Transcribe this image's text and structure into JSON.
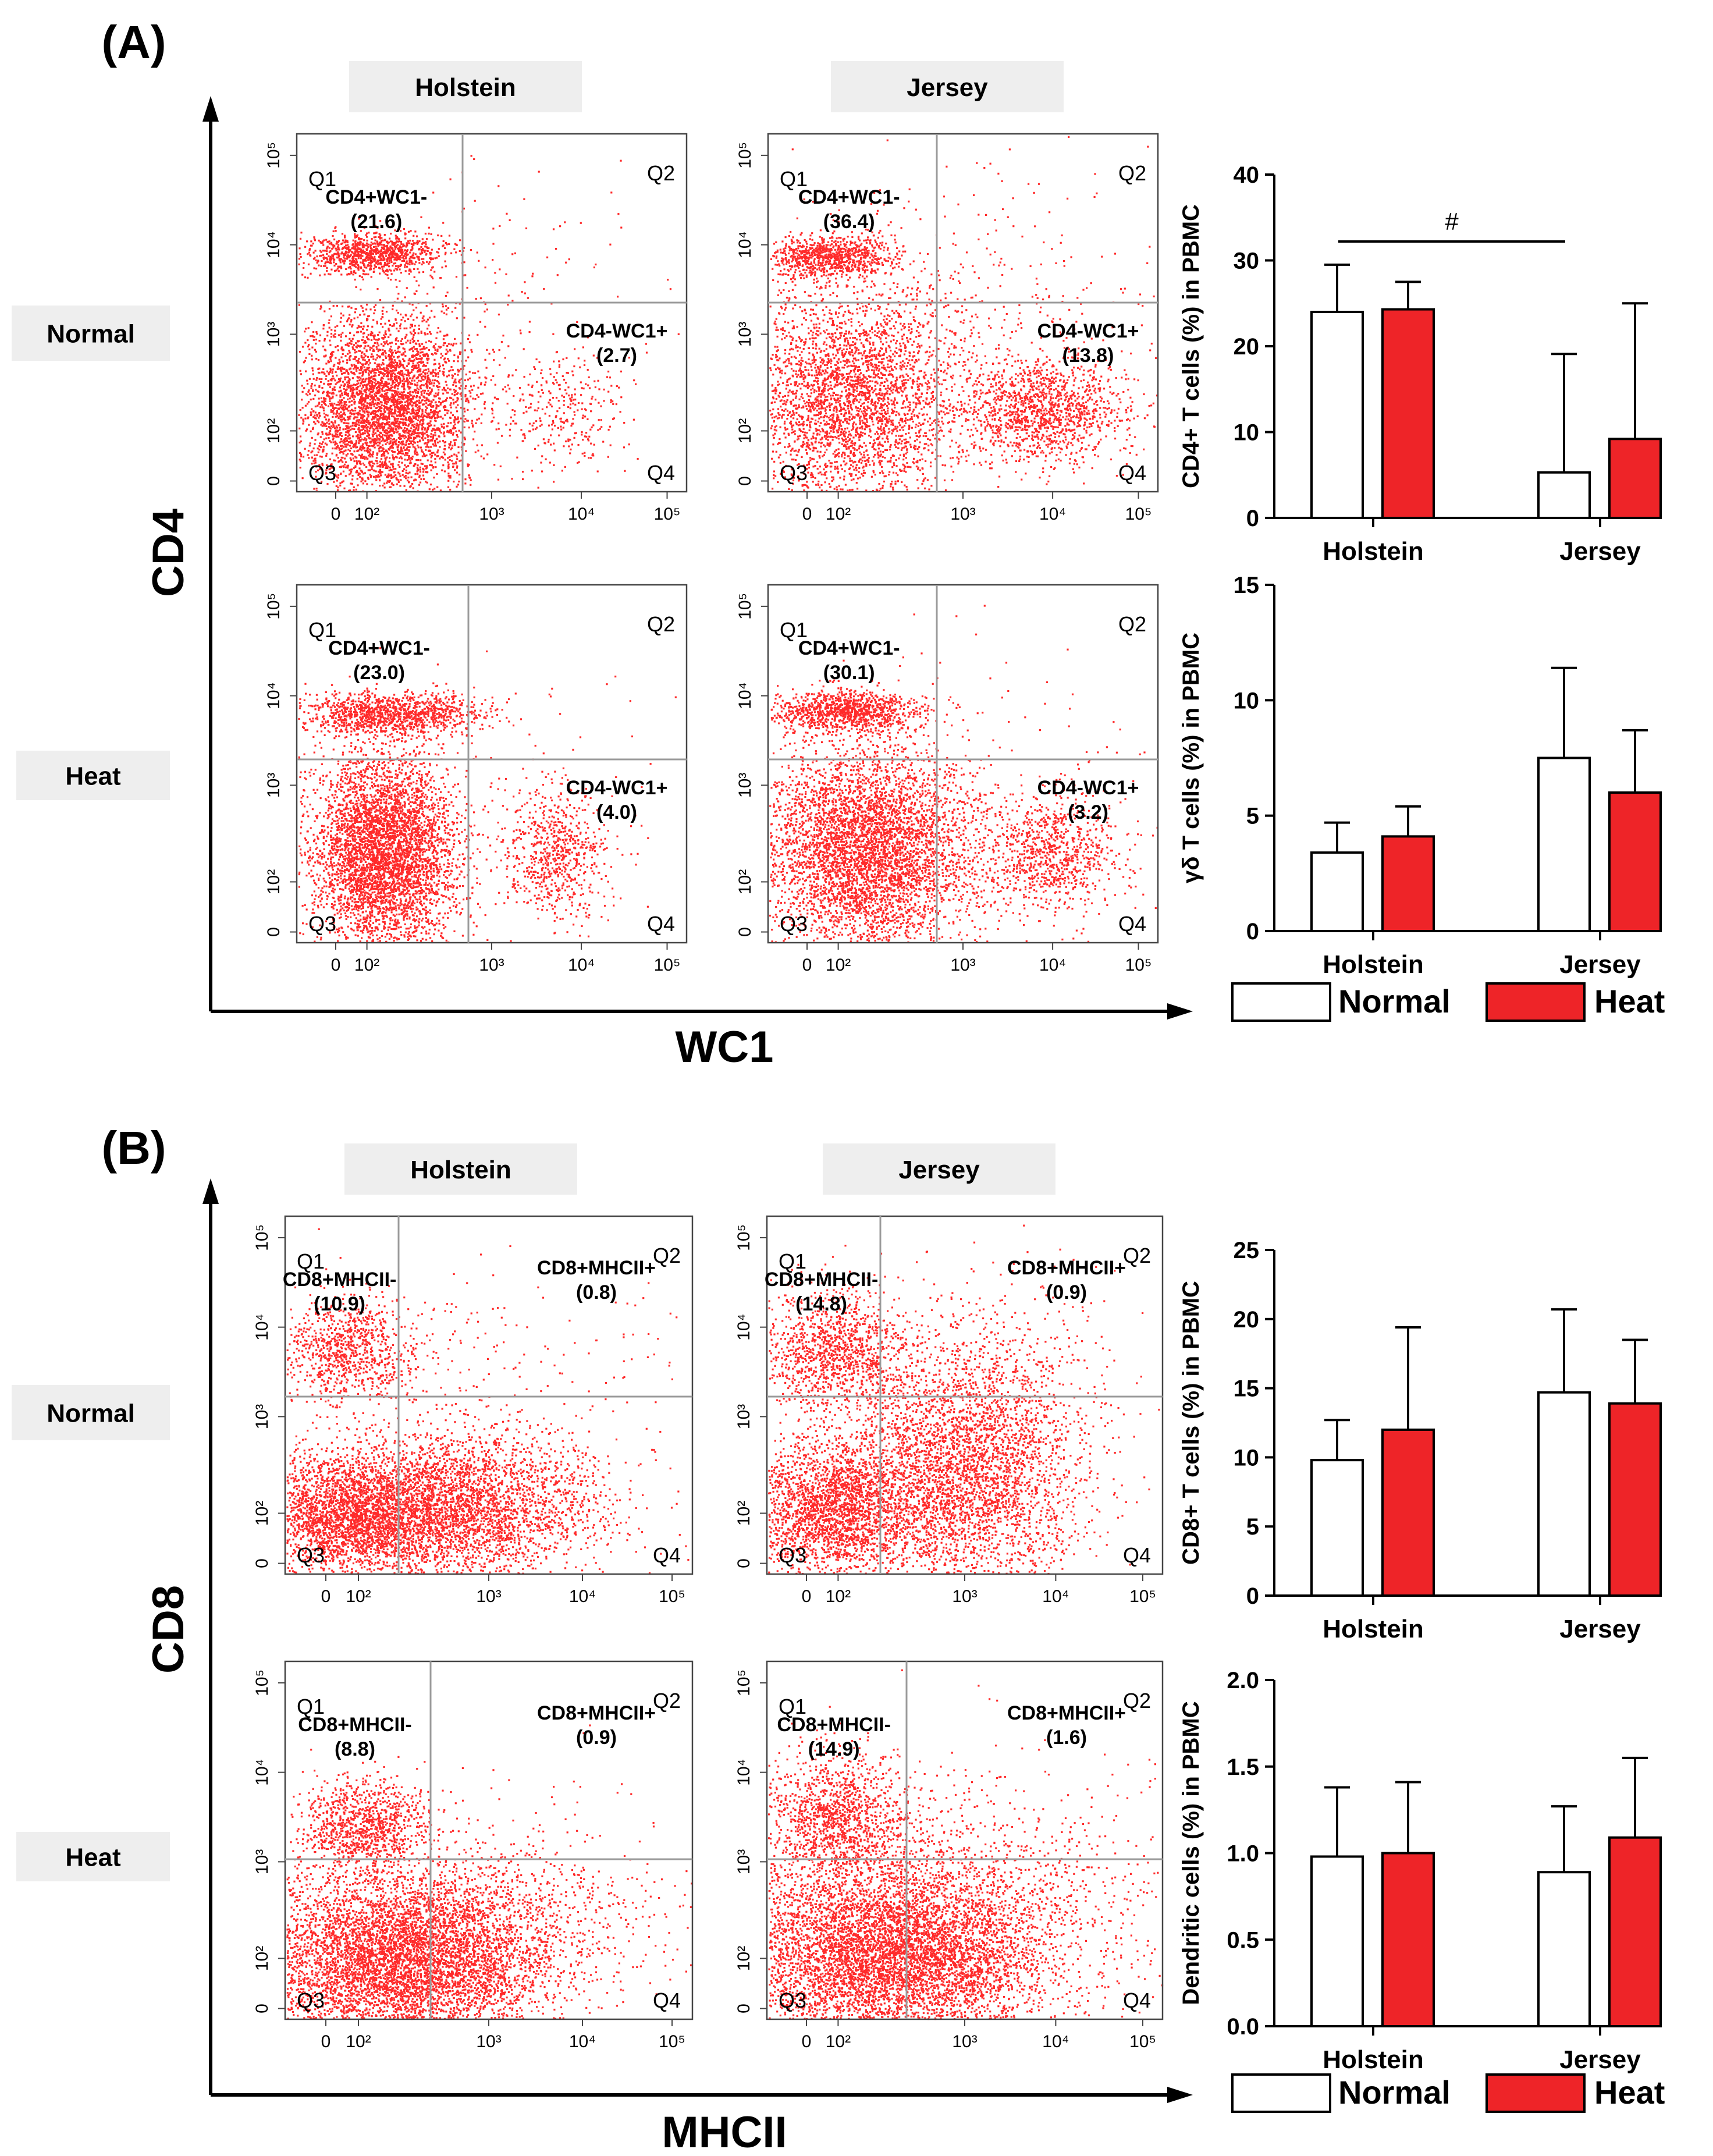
{
  "colors": {
    "red": "#ff2a2a",
    "normal_fill": "#ffffff",
    "heat_fill": "#ee2428",
    "axis": "#000000",
    "label_bg": "#eeeeee",
    "gate_line": "#9a9a9a"
  },
  "panels": [
    {
      "label": "(A)",
      "column_labels": [
        "Holstein",
        "Jersey"
      ],
      "row_labels": [
        "Normal",
        "Heat"
      ],
      "y_axis_label": "CD4",
      "x_axis_label": "WC1",
      "plots": [
        {
          "row": 0,
          "col": 0,
          "q1_name": "CD4+WC1-",
          "q1_value": "(21.6)",
          "q4_name": "CD4-WC1+",
          "q4_value": "(2.7)"
        },
        {
          "row": 0,
          "col": 1,
          "q1_name": "CD4+WC1-",
          "q1_value": "(36.4)",
          "q4_name": "CD4-WC1+",
          "q4_value": "(13.8)"
        },
        {
          "row": 1,
          "col": 0,
          "q1_name": "CD4+WC1-",
          "q1_value": "(23.0)",
          "q4_name": "CD4-WC1+",
          "q4_value": "(4.0)"
        },
        {
          "row": 1,
          "col": 1,
          "q1_name": "CD4+WC1-",
          "q1_value": "(30.1)",
          "q4_name": "CD4-WC1+",
          "q4_value": "(3.2)"
        }
      ]
    },
    {
      "label": "(B)",
      "column_labels": [
        "Holstein",
        "Jersey"
      ],
      "row_labels": [
        "Normal",
        "Heat"
      ],
      "y_axis_label": "CD8",
      "x_axis_label": "MHCII",
      "plots": [
        {
          "row": 0,
          "col": 0,
          "q1_name": "CD8+MHCII-",
          "q1_value": "(10.9)",
          "q2_name": "CD8+MHCII+",
          "q2_value": "(0.8)"
        },
        {
          "row": 0,
          "col": 1,
          "q1_name": "CD8+MHCII-",
          "q1_value": "(14.8)",
          "q2_name": "CD8+MHCII+",
          "q2_value": "(0.9)"
        },
        {
          "row": 1,
          "col": 0,
          "q1_name": "CD8+MHCII-",
          "q1_value": "(8.8)",
          "q2_name": "CD8+MHCII+",
          "q2_value": "(0.9)"
        },
        {
          "row": 1,
          "col": 1,
          "q1_name": "CD8+MHCII-",
          "q1_value": "(14.9)",
          "q2_name": "CD8+MHCII+",
          "q2_value": "(1.6)"
        }
      ]
    }
  ],
  "quadrant_labels": [
    "Q1",
    "Q2",
    "Q3",
    "Q4"
  ],
  "flow_tick_labels": {
    "y": [
      "10⁵",
      "10⁴",
      "10³",
      "10²",
      "0"
    ],
    "x": [
      "0",
      "10²",
      "10³",
      "10⁴",
      "10⁵"
    ]
  },
  "legend": {
    "normal": "Normal",
    "heat": "Heat"
  },
  "chart_data": [
    {
      "type": "bar",
      "ylabel": "CD4+ T cells  (%) in PBMC",
      "categories": [
        "Holstein",
        "Jersey"
      ],
      "ylim": [
        0,
        40
      ],
      "yticks": [
        "0",
        "10",
        "20",
        "30",
        "40"
      ],
      "series": [
        {
          "name": "Normal",
          "values": [
            24.0,
            5.3
          ],
          "errors": [
            5.5,
            13.8
          ]
        },
        {
          "name": "Heat",
          "values": [
            24.3,
            9.2
          ],
          "errors": [
            3.2,
            15.8
          ]
        }
      ],
      "annotation": "#"
    },
    {
      "type": "bar",
      "ylabel": "γδ  T cells  (%) in PBMC",
      "categories": [
        "Holstein",
        "Jersey"
      ],
      "ylim": [
        0,
        15
      ],
      "yticks": [
        "0",
        "5",
        "10",
        "15"
      ],
      "series": [
        {
          "name": "Normal",
          "values": [
            3.4,
            7.5
          ],
          "errors": [
            1.3,
            3.9
          ]
        },
        {
          "name": "Heat",
          "values": [
            4.1,
            6.0
          ],
          "errors": [
            1.3,
            2.7
          ]
        }
      ]
    },
    {
      "type": "bar",
      "ylabel": "CD8+ T cells  (%) in PBMC",
      "categories": [
        "Holstein",
        "Jersey"
      ],
      "ylim": [
        0,
        25
      ],
      "yticks": [
        "0",
        "5",
        "10",
        "15",
        "20",
        "25"
      ],
      "series": [
        {
          "name": "Normal",
          "values": [
            9.8,
            14.7
          ],
          "errors": [
            2.9,
            6.0
          ]
        },
        {
          "name": "Heat",
          "values": [
            12.0,
            13.9
          ],
          "errors": [
            7.4,
            4.6
          ]
        }
      ]
    },
    {
      "type": "bar",
      "ylabel": "Dendritic cells (%) in PBMC",
      "categories": [
        "Holstein",
        "Jersey"
      ],
      "ylim": [
        0,
        2.0
      ],
      "yticks": [
        "0.0",
        "0.5",
        "1.0",
        "1.5",
        "2.0"
      ],
      "series": [
        {
          "name": "Normal",
          "values": [
            0.98,
            0.89
          ],
          "errors": [
            0.4,
            0.38
          ]
        },
        {
          "name": "Heat",
          "values": [
            1.0,
            1.09
          ],
          "errors": [
            0.41,
            0.46
          ]
        }
      ]
    }
  ]
}
